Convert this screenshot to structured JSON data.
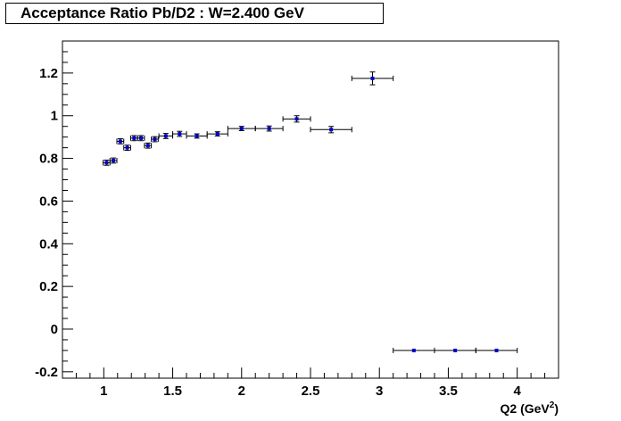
{
  "chart_data": {
    "type": "scatter",
    "title": "Acceptance Ratio Pb/D2 : W=2.400 GeV",
    "xlabel": "Q2 (GeV",
    "xlabel_sup": "2",
    "xlabel_end": ")",
    "ylabel": "",
    "xlim": [
      0.7,
      4.3
    ],
    "ylim": [
      -0.23,
      1.35
    ],
    "x_ticks": [
      1,
      1.5,
      2,
      2.5,
      3,
      3.5,
      4
    ],
    "x_tick_labels": [
      "1",
      "1.5",
      "2",
      "2.5",
      "3",
      "3.5",
      "4"
    ],
    "y_ticks": [
      -0.2,
      0,
      0.2,
      0.4,
      0.6,
      0.8,
      1,
      1.2
    ],
    "y_tick_labels": [
      "-0.2",
      "0",
      "0.2",
      "0.4",
      "0.6",
      "0.8",
      "1",
      "1.2"
    ],
    "grid": false,
    "marker_color": "#0000cc",
    "points": [
      {
        "x": 1.02,
        "y": 0.78,
        "xerr": 0.025,
        "yerr": 0.012
      },
      {
        "x": 1.07,
        "y": 0.79,
        "xerr": 0.025,
        "yerr": 0.012
      },
      {
        "x": 1.12,
        "y": 0.88,
        "xerr": 0.025,
        "yerr": 0.012
      },
      {
        "x": 1.17,
        "y": 0.85,
        "xerr": 0.025,
        "yerr": 0.012
      },
      {
        "x": 1.22,
        "y": 0.895,
        "xerr": 0.025,
        "yerr": 0.012
      },
      {
        "x": 1.27,
        "y": 0.895,
        "xerr": 0.025,
        "yerr": 0.012
      },
      {
        "x": 1.32,
        "y": 0.86,
        "xerr": 0.025,
        "yerr": 0.012
      },
      {
        "x": 1.37,
        "y": 0.89,
        "xerr": 0.025,
        "yerr": 0.012
      },
      {
        "x": 1.45,
        "y": 0.905,
        "xerr": 0.05,
        "yerr": 0.012
      },
      {
        "x": 1.55,
        "y": 0.915,
        "xerr": 0.05,
        "yerr": 0.012
      },
      {
        "x": 1.675,
        "y": 0.905,
        "xerr": 0.075,
        "yerr": 0.01
      },
      {
        "x": 1.825,
        "y": 0.915,
        "xerr": 0.075,
        "yerr": 0.01
      },
      {
        "x": 2.0,
        "y": 0.94,
        "xerr": 0.1,
        "yerr": 0.01
      },
      {
        "x": 2.2,
        "y": 0.94,
        "xerr": 0.1,
        "yerr": 0.012
      },
      {
        "x": 2.4,
        "y": 0.985,
        "xerr": 0.1,
        "yerr": 0.015
      },
      {
        "x": 2.65,
        "y": 0.935,
        "xerr": 0.15,
        "yerr": 0.015
      },
      {
        "x": 2.95,
        "y": 1.175,
        "xerr": 0.15,
        "yerr": 0.03
      },
      {
        "x": 3.25,
        "y": -0.1,
        "xerr": 0.15,
        "yerr": 0.0
      },
      {
        "x": 3.55,
        "y": -0.1,
        "xerr": 0.15,
        "yerr": 0.0
      },
      {
        "x": 3.85,
        "y": -0.1,
        "xerr": 0.15,
        "yerr": 0.0
      }
    ]
  }
}
